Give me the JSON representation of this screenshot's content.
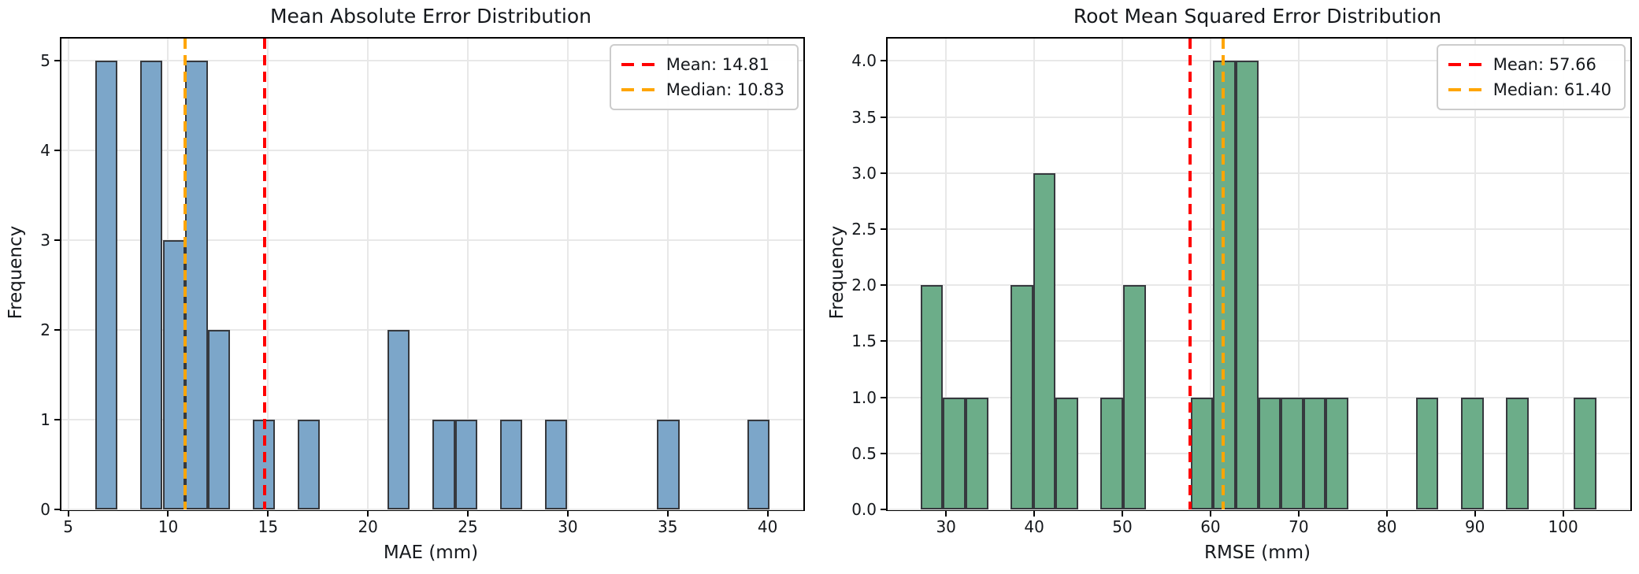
{
  "figure": {
    "background": "#ffffff"
  },
  "chart_data": [
    {
      "type": "bar",
      "subtype": "histogram",
      "title": "Mean Absolute Error Distribution",
      "xlabel": "MAE (mm)",
      "ylabel": "Frequency",
      "bin_start": 6.35,
      "bin_width": 1.125,
      "frequencies": [
        5,
        0,
        5,
        3,
        5,
        2,
        0,
        1,
        0,
        1,
        0,
        0,
        0,
        2,
        0,
        1,
        1,
        0,
        1,
        0,
        1,
        0,
        0,
        0,
        0,
        1,
        0,
        0,
        0,
        1
      ],
      "xlim": [
        4.66,
        41.79
      ],
      "ylim": [
        0,
        5.25
      ],
      "xticks": [
        5,
        10,
        15,
        20,
        25,
        30,
        35,
        40
      ],
      "xtick_labels": [
        "5",
        "10",
        "15",
        "20",
        "25",
        "30",
        "35",
        "40"
      ],
      "yticks": [
        0,
        1,
        2,
        3,
        4,
        5
      ],
      "ytick_labels": [
        "0",
        "1",
        "2",
        "3",
        "4",
        "5"
      ],
      "grid": true,
      "bar_color": "#7ca6c9",
      "bar_edge_color": "#36393e",
      "mean": 14.81,
      "median": 10.83,
      "mean_color": "#ff0000",
      "median_color": "#ffa500",
      "legend": {
        "position": "top-right",
        "mean_label": "Mean: 14.81",
        "median_label": "Median: 10.83"
      }
    },
    {
      "type": "bar",
      "subtype": "histogram",
      "title": "Root Mean Squared Error Distribution",
      "xlabel": "RMSE (mm)",
      "ylabel": "Frequency",
      "bin_start": 27.1,
      "bin_width": 2.555,
      "frequencies": [
        2,
        1,
        1,
        0,
        2,
        3,
        1,
        0,
        1,
        2,
        0,
        0,
        1,
        4,
        4,
        1,
        1,
        1,
        1,
        0,
        0,
        0,
        1,
        0,
        1,
        0,
        1,
        0,
        0,
        1
      ],
      "xlim": [
        23.37,
        107.63
      ],
      "ylim": [
        0,
        4.2
      ],
      "xticks": [
        30,
        40,
        50,
        60,
        70,
        80,
        90,
        100
      ],
      "xtick_labels": [
        "30",
        "40",
        "50",
        "60",
        "70",
        "80",
        "90",
        "100"
      ],
      "yticks": [
        0,
        0.5,
        1,
        1.5,
        2,
        2.5,
        3,
        3.5,
        4
      ],
      "ytick_labels": [
        "0.0",
        "0.5",
        "1.0",
        "1.5",
        "2.0",
        "2.5",
        "3.0",
        "3.5",
        "4.0"
      ],
      "grid": true,
      "bar_color": "#6cad89",
      "bar_edge_color": "#36393e",
      "mean": 57.66,
      "median": 61.4,
      "mean_color": "#ff0000",
      "median_color": "#ffa500",
      "legend": {
        "position": "top-right",
        "mean_label": "Mean: 57.66",
        "median_label": "Median: 61.40"
      }
    }
  ]
}
